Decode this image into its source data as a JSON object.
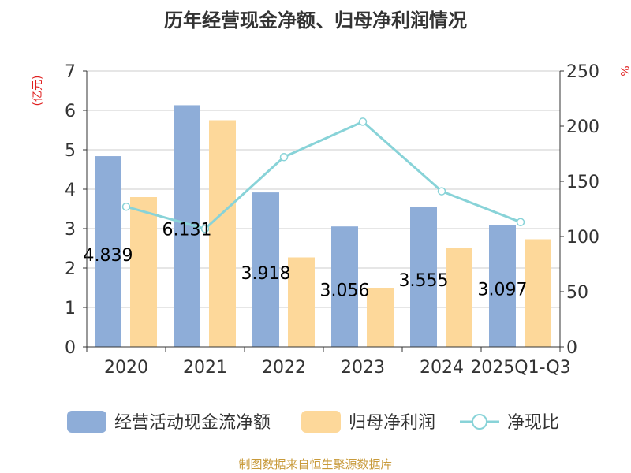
{
  "colors": {
    "operating_cash_flow": "#8eadd8",
    "net_profit": "#fdd89a",
    "ratio_line": "#88d3d8",
    "unit_red": "#e02020",
    "source": "#c89a3a",
    "title": "#333333",
    "axis": "#333333",
    "grid": "#cccccc"
  },
  "chart_data": {
    "type": "bar",
    "title": "历年经营现金净额、归母净利润情况",
    "categories": [
      "2020",
      "2021",
      "2022",
      "2023",
      "2024",
      "2025Q1-Q3"
    ],
    "y_left_unit": "(亿元)",
    "y_right_unit": "%",
    "y_left_range": [
      0,
      7
    ],
    "y_left_ticks": [
      "0",
      "1",
      "2",
      "3",
      "4",
      "5",
      "6",
      "7"
    ],
    "y_right_range": [
      0,
      250
    ],
    "y_right_ticks": [
      "0",
      "50",
      "100",
      "150",
      "200",
      "250"
    ],
    "series": [
      {
        "name": "经营活动现金流净额",
        "kind": "bar",
        "axis": "left",
        "values": [
          4.839,
          6.131,
          3.918,
          3.056,
          3.555,
          3.097
        ],
        "labels": [
          "4.839",
          "6.131",
          "3.918",
          "3.056",
          "3.555",
          "3.097"
        ]
      },
      {
        "name": "归母净利润",
        "kind": "bar",
        "axis": "left",
        "values": [
          3.8,
          5.75,
          2.27,
          1.5,
          2.52,
          2.73
        ]
      },
      {
        "name": "净现比",
        "kind": "line",
        "axis": "right",
        "values": [
          127,
          107,
          172,
          204,
          141,
          113
        ]
      }
    ],
    "grid": true,
    "legend_position": "bottom"
  },
  "source_text": "制图数据来自恒生聚源数据库"
}
